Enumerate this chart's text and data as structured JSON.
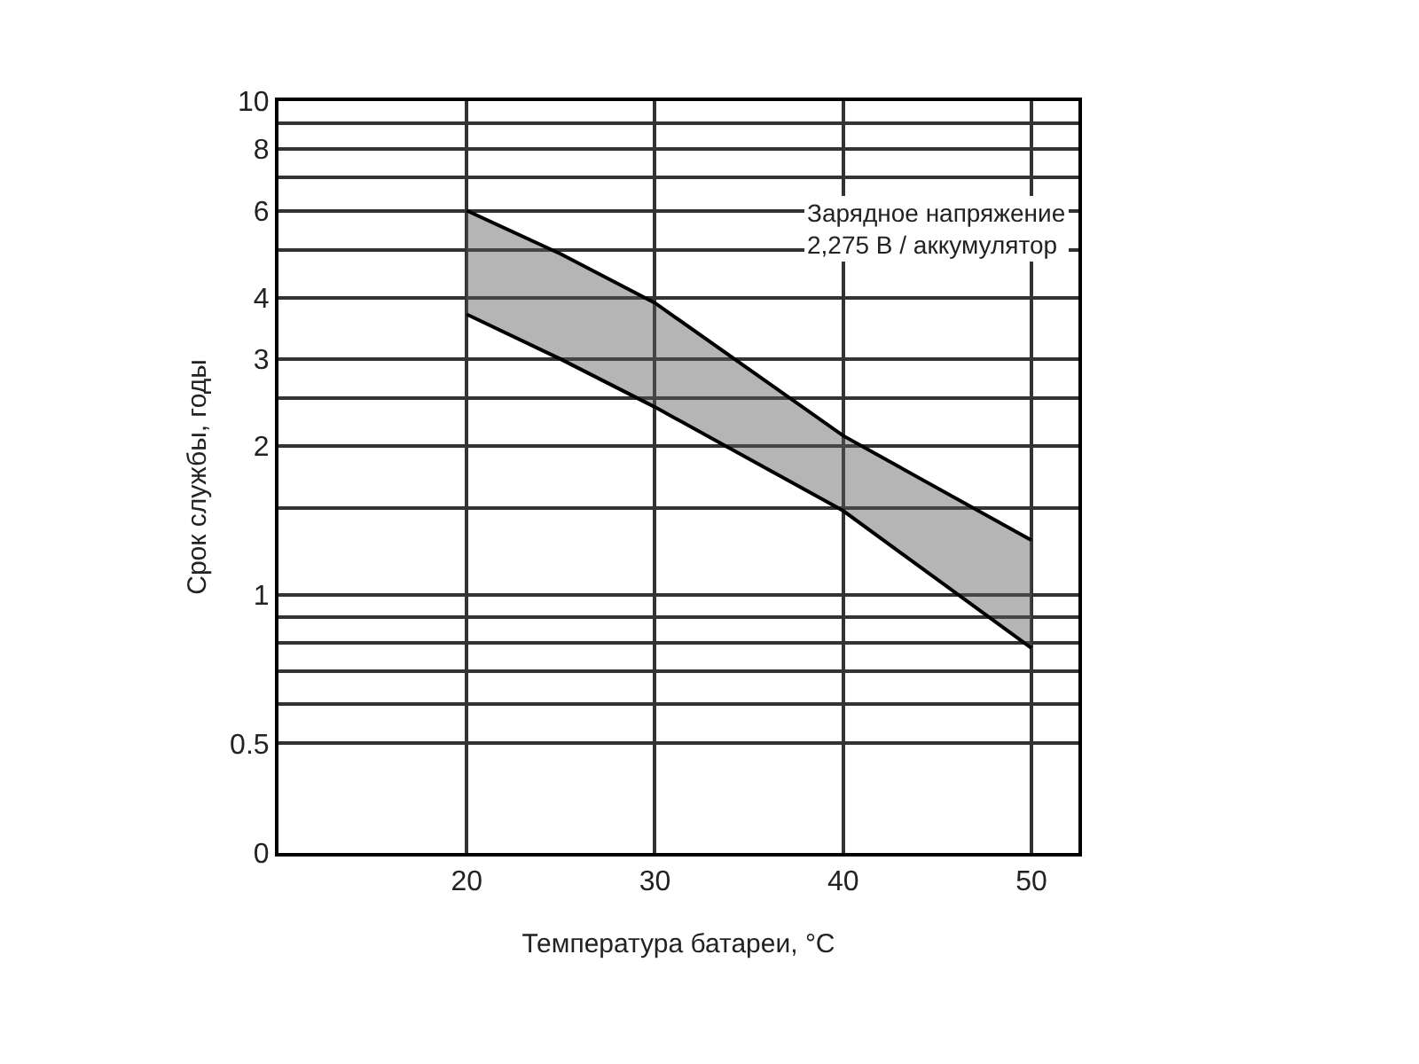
{
  "chart_data": {
    "type": "line",
    "xlabel": "Температура батареи, °C",
    "ylabel": "Срок службы, годы",
    "annotations": [
      "Зарядное напряжение\n2,275 В / аккумулятор"
    ],
    "x": [
      20,
      25,
      30,
      40,
      50
    ],
    "series": [
      {
        "color": "#000000",
        "values": [
          6.0,
          4.9,
          3.9,
          2.1,
          1.29
        ],
        "lower": [
          3.7,
          3.0,
          2.4,
          1.48,
          0.78
        ],
        "upper": [
          6.0,
          4.9,
          3.9,
          2.1,
          1.29
        ]
      },
      {
        "color": "#000000",
        "values": [
          3.7,
          3.0,
          2.4,
          1.48,
          0.78
        ]
      }
    ],
    "log": "y",
    "grid": true,
    "xlim": [
      10,
      52.5
    ],
    "xticks": [
      20,
      30,
      40,
      50
    ],
    "ylim": [
      0.3,
      10
    ],
    "yticks": [
      {
        "value": 0.3,
        "label": "0"
      },
      0.5,
      {
        "value": 0.6,
        "label": null
      },
      {
        "value": 0.7,
        "label": null
      },
      {
        "value": 0.8,
        "label": null
      },
      {
        "value": 0.9,
        "label": null
      },
      1,
      {
        "value": 1.5,
        "label": null
      },
      2,
      {
        "value": 2.5,
        "label": null
      },
      3,
      4,
      {
        "value": 5,
        "label": null
      },
      6,
      {
        "value": 7,
        "label": null
      },
      8,
      {
        "value": 9,
        "label": null
      },
      10
    ]
  }
}
